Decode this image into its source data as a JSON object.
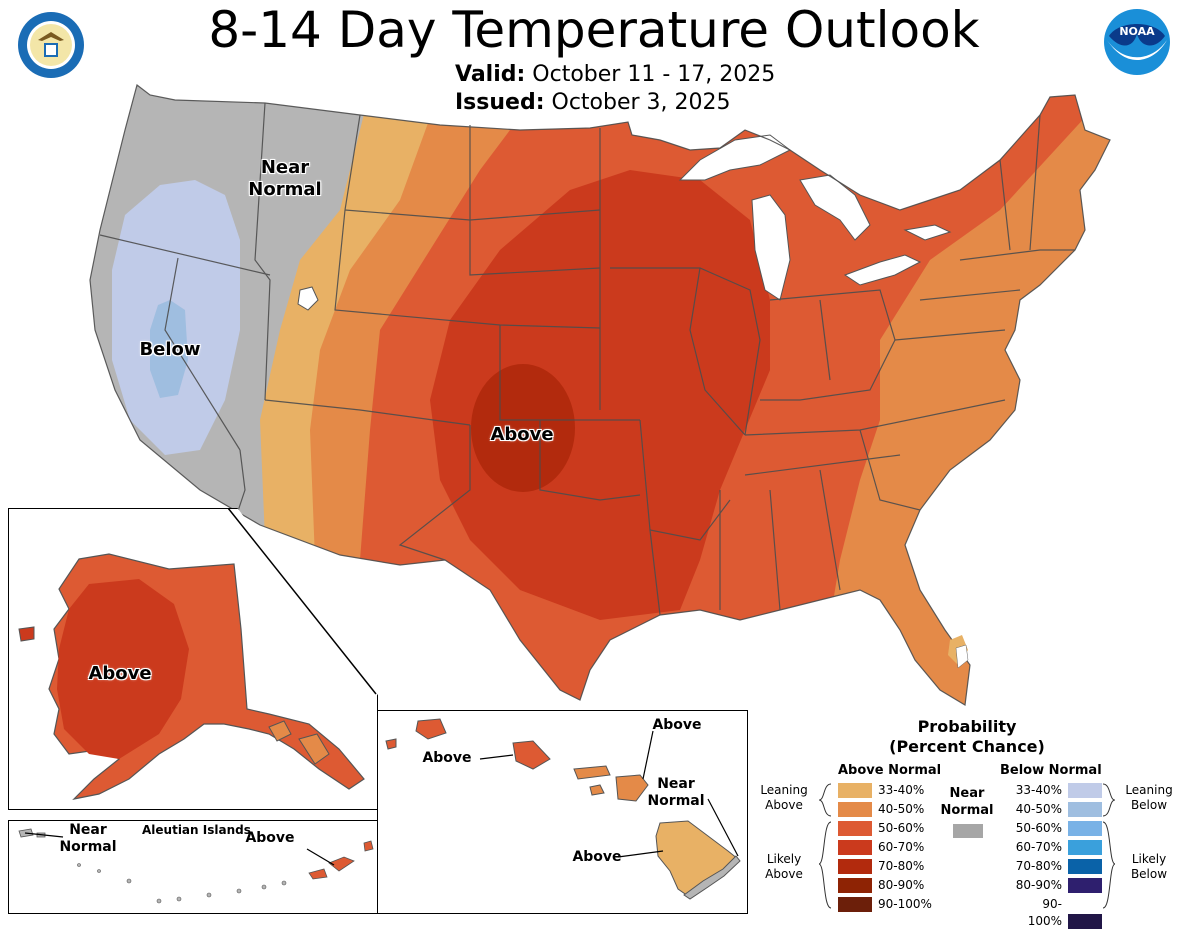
{
  "header": {
    "title": "8-14 Day Temperature Outlook",
    "valid_label": "Valid:",
    "valid_value": "October 11 - 17, 2025",
    "issued_label": "Issued:",
    "issued_value": "October 3, 2025",
    "left_logo_icon": "department-of-commerce-seal-icon",
    "right_logo_icon": "noaa-logo-icon"
  },
  "map": {
    "conus_labels": {
      "near_normal": "Near\nNormal",
      "below": "Below",
      "above": "Above"
    },
    "alaska": {
      "above": "Above"
    },
    "aleutians": {
      "near_normal": "Near\nNormal",
      "title": "Aleutian Islands",
      "above": "Above"
    },
    "hawaii": {
      "above_1": "Above",
      "above_2": "Above",
      "near_normal": "Near\nNormal",
      "above_3": "Above"
    }
  },
  "legend": {
    "title_1": "Probability",
    "title_2": "(Percent Chance)",
    "above_header": "Above Normal",
    "below_header": "Below Normal",
    "near_normal_label": "Near\nNormal",
    "near_normal_color": "#a6a6a6",
    "leaning_above": "Leaning\nAbove",
    "likely_above": "Likely\nAbove",
    "leaning_below": "Leaning\nBelow",
    "likely_below": "Likely\nBelow",
    "above_rows": [
      {
        "label": "33-40%",
        "color": "#e8b165"
      },
      {
        "label": "40-50%",
        "color": "#e48a48"
      },
      {
        "label": "50-60%",
        "color": "#dd5a33"
      },
      {
        "label": "60-70%",
        "color": "#cb3a1d"
      },
      {
        "label": "70-80%",
        "color": "#b22a0d"
      },
      {
        "label": "80-90%",
        "color": "#8e2304"
      },
      {
        "label": "90-100%",
        "color": "#6c1f0a"
      }
    ],
    "below_rows": [
      {
        "label": "33-40%",
        "color": "#c0cbe8"
      },
      {
        "label": "40-50%",
        "color": "#9fbee0"
      },
      {
        "label": "50-60%",
        "color": "#79b2e6"
      },
      {
        "label": "60-70%",
        "color": "#3aa0dc"
      },
      {
        "label": "70-80%",
        "color": "#0a62a8"
      },
      {
        "label": "80-90%",
        "color": "#2e1f6e"
      },
      {
        "label": "90-100%",
        "color": "#211647"
      }
    ]
  }
}
